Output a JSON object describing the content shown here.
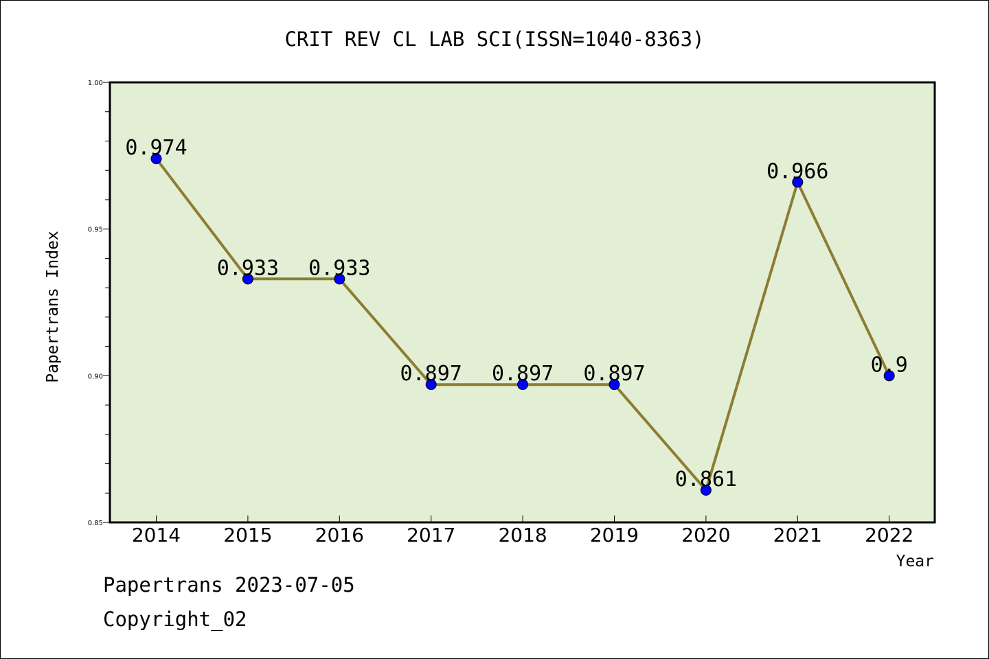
{
  "footer": {
    "line1": "Papertrans 2023-07-05",
    "line2": "Copyright_02"
  },
  "chart_data": {
    "type": "line",
    "title": "CRIT REV CL LAB SCI(ISSN=1040-8363)",
    "xlabel": "Year",
    "ylabel": "Papertrans Index",
    "categories": [
      "2014",
      "2015",
      "2016",
      "2017",
      "2018",
      "2019",
      "2020",
      "2021",
      "2022"
    ],
    "values": [
      0.974,
      0.933,
      0.933,
      0.897,
      0.897,
      0.897,
      0.861,
      0.966,
      0.9
    ],
    "data_labels": [
      "0.974",
      "0.933",
      "0.933",
      "0.897",
      "0.897",
      "0.897",
      "0.861",
      "0.966",
      "0.9"
    ],
    "ylim": [
      0.85,
      1.0
    ],
    "yticks": [
      "0.85",
      "0.90",
      "0.95",
      "1.00"
    ],
    "ytick_values": [
      0.85,
      0.9,
      0.95,
      1.0
    ],
    "grid": false,
    "colors": {
      "plot_background": "#e2efd5",
      "line": "#8c7d32",
      "marker": "#0000ff",
      "axes": "#000000"
    }
  }
}
